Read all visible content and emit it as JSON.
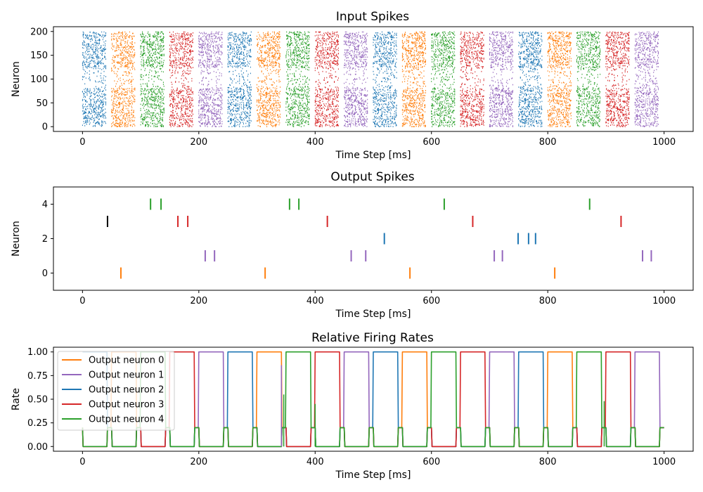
{
  "figure": {
    "titles": [
      "Input Spikes",
      "Output Spikes",
      "Relative Firing Rates"
    ]
  },
  "chart_data": [
    {
      "type": "scatter",
      "title": "Input Spikes",
      "xlabel": "Time Step [ms]",
      "ylabel": "Neuron",
      "xlim": [
        -50,
        1050
      ],
      "ylim": [
        -10,
        210
      ],
      "xticks": [
        0,
        200,
        400,
        600,
        800,
        1000
      ],
      "yticks": [
        0,
        50,
        100,
        150,
        200
      ],
      "marker": "short vertical tick",
      "colors": [
        "#ff7f0e",
        "#9467bd",
        "#1f77b4",
        "#d62728",
        "#2ca02c"
      ],
      "presentation_window_ms": 50,
      "active_window_ms": [
        0,
        40
      ],
      "neuron_range": [
        0,
        199
      ],
      "windows": [
        {
          "start": 0,
          "class": 2
        },
        {
          "start": 50,
          "class": 0
        },
        {
          "start": 100,
          "class": 4
        },
        {
          "start": 150,
          "class": 3
        },
        {
          "start": 200,
          "class": 1
        },
        {
          "start": 250,
          "class": 2
        },
        {
          "start": 300,
          "class": 0
        },
        {
          "start": 350,
          "class": 4
        },
        {
          "start": 400,
          "class": 3
        },
        {
          "start": 450,
          "class": 1
        },
        {
          "start": 500,
          "class": 2
        },
        {
          "start": 550,
          "class": 0
        },
        {
          "start": 600,
          "class": 4
        },
        {
          "start": 650,
          "class": 3
        },
        {
          "start": 700,
          "class": 1
        },
        {
          "start": 750,
          "class": 2
        },
        {
          "start": 800,
          "class": 0
        },
        {
          "start": 850,
          "class": 4
        },
        {
          "start": 900,
          "class": 3
        },
        {
          "start": 950,
          "class": 1
        }
      ],
      "dense_neuron_bands": [
        [
          0,
          80
        ],
        [
          125,
          200
        ]
      ],
      "sparse_neuron_band": [
        85,
        120
      ]
    },
    {
      "type": "scatter",
      "title": "Output Spikes",
      "xlabel": "Time Step [ms]",
      "ylabel": "Neuron",
      "xlim": [
        -50,
        1050
      ],
      "ylim": [
        -1,
        5
      ],
      "xticks": [
        0,
        200,
        400,
        600,
        800,
        1000
      ],
      "yticks": [
        0,
        2,
        4
      ],
      "marker": "vertical tick",
      "series": [
        {
          "neuron": 0,
          "color": "#ff7f0e",
          "times": [
            66,
            314,
            563,
            812
          ]
        },
        {
          "neuron": 1,
          "color": "#9467bd",
          "times": [
            211,
            227,
            462,
            487,
            708,
            722,
            963,
            978
          ]
        },
        {
          "neuron": 2,
          "color": "#1f77b4",
          "times": [
            519,
            749,
            767,
            779
          ]
        },
        {
          "neuron": 3,
          "color": "#d62728",
          "times": [
            164,
            181,
            421,
            671,
            926
          ]
        },
        {
          "neuron": 3,
          "color": "#000000",
          "times": [
            43
          ]
        },
        {
          "neuron": 4,
          "color": "#2ca02c",
          "times": [
            117,
            135,
            356,
            372,
            622,
            872
          ]
        }
      ]
    },
    {
      "type": "line",
      "title": "Relative Firing Rates",
      "xlabel": "Time Step [ms]",
      "ylabel": "Rate",
      "xlim": [
        -50,
        1050
      ],
      "ylim": [
        -0.05,
        1.05
      ],
      "xticks": [
        0,
        200,
        400,
        600,
        800,
        1000
      ],
      "yticks": [
        "0.00",
        "0.25",
        "0.50",
        "0.75",
        "1.00"
      ],
      "legend": "upper left",
      "baseline_rate": 0.2,
      "series": [
        {
          "name": "Output neuron 0",
          "color": "#ff7f0e",
          "high_intervals": [
            [
              50,
              92
            ],
            [
              300,
              342
            ],
            [
              550,
              592
            ],
            [
              800,
              842
            ]
          ]
        },
        {
          "name": "Output neuron 1",
          "color": "#9467bd",
          "high_intervals": [
            [
              200,
              242
            ],
            [
              450,
              492
            ],
            [
              700,
              742
            ],
            [
              950,
              992
            ]
          ]
        },
        {
          "name": "Output neuron 2",
          "color": "#1f77b4",
          "high_intervals": [
            [
              0,
              42
            ],
            [
              250,
              292
            ],
            [
              500,
              542
            ],
            [
              750,
              792
            ]
          ]
        },
        {
          "name": "Output neuron 3",
          "color": "#d62728",
          "high_intervals": [
            [
              150,
              192
            ],
            [
              400,
              442
            ],
            [
              650,
              692
            ],
            [
              900,
              942
            ]
          ]
        },
        {
          "name": "Output neuron 4",
          "color": "#2ca02c",
          "high_intervals": [
            [
              100,
              142
            ],
            [
              350,
              392
            ],
            [
              600,
              642
            ],
            [
              850,
              892
            ]
          ]
        }
      ],
      "spikes": [
        {
          "t": 342,
          "v": 0.86,
          "color": "#9467bd"
        },
        {
          "t": 346,
          "v": 0.55,
          "color": "#2ca02c"
        },
        {
          "t": 400,
          "v": 0.45,
          "color": "#2ca02c"
        },
        {
          "t": 897,
          "v": 0.48,
          "color": "#2ca02c"
        }
      ]
    }
  ]
}
